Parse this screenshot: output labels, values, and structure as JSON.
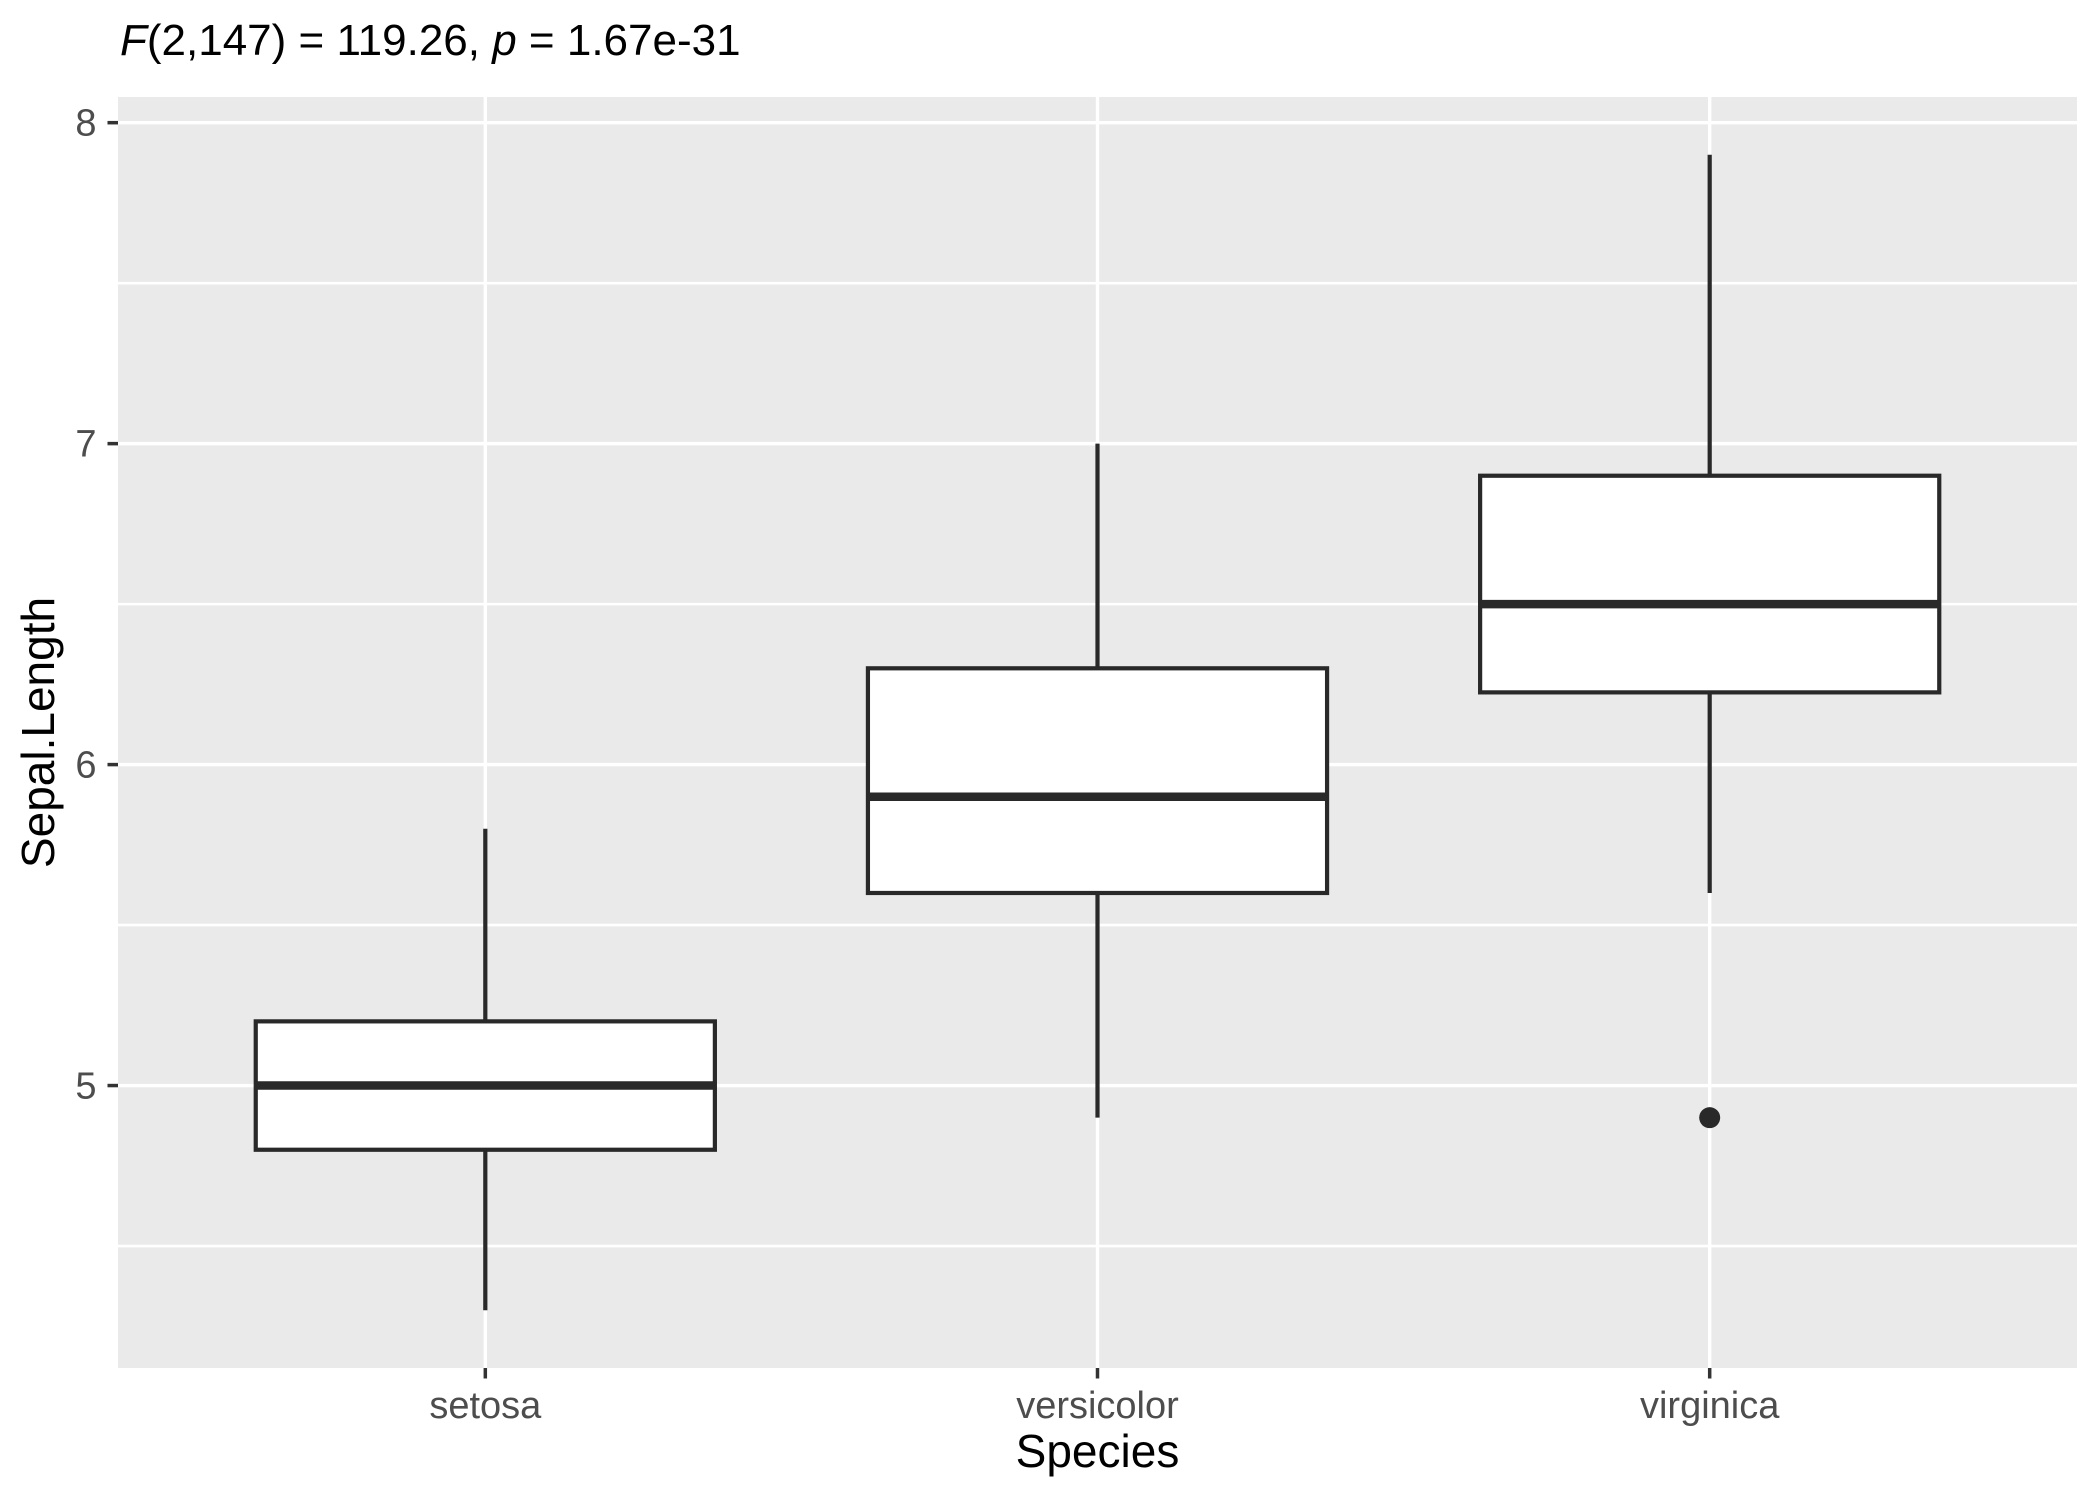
{
  "title": {
    "text": "F(2,147) = 119.26, p = 1.67e-31",
    "parts": [
      {
        "text": "F",
        "italic": true
      },
      {
        "text": "(2,147) = 119.26, ",
        "italic": false
      },
      {
        "text": "p",
        "italic": true
      },
      {
        "text": " = 1.67e-31",
        "italic": false
      }
    ]
  },
  "chart_data": {
    "type": "boxplot",
    "title": "F(2,147) = 119.26, p = 1.67e-31",
    "xlabel": "Species",
    "ylabel": "Sepal.Length",
    "categories": [
      "setosa",
      "versicolor",
      "virginica"
    ],
    "series": [
      {
        "category": "setosa",
        "whisker_min": 4.3,
        "q1": 4.8,
        "median": 5.0,
        "q3": 5.2,
        "whisker_max": 5.8,
        "outliers": []
      },
      {
        "category": "versicolor",
        "whisker_min": 4.9,
        "q1": 5.6,
        "median": 5.9,
        "q3": 6.3,
        "whisker_max": 7.0,
        "outliers": []
      },
      {
        "category": "virginica",
        "whisker_min": 5.6,
        "q1": 6.225,
        "median": 6.5,
        "q3": 6.9,
        "whisker_max": 7.9,
        "outliers": [
          4.9
        ]
      }
    ],
    "y_major_ticks": [
      8,
      7,
      6,
      5
    ],
    "y_minor_gridlines": [
      7.5,
      6.5,
      5.5,
      4.5
    ],
    "ylim": [
      4.12,
      8.08
    ],
    "grid": true,
    "legend": false,
    "box_width_ratio": 0.75
  },
  "colors": {
    "page_background": "#FFFFFF",
    "panel_background": "#EAEAEA",
    "gridline": "#FFFFFF",
    "box_stroke": "#292929",
    "box_fill": "#FFFFFF",
    "median_stroke": "#292929",
    "whisker_stroke": "#292929",
    "outlier_fill": "#292929",
    "tick_mark": "#333333",
    "tick_label": "#4D4D4D",
    "axis_title": "#000000",
    "title_text": "#000000"
  }
}
